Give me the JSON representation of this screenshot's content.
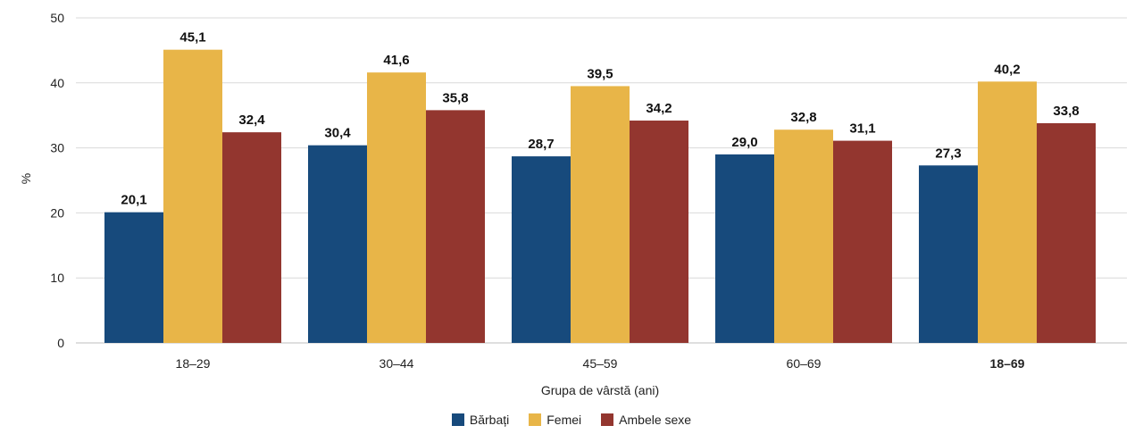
{
  "chart_data": {
    "type": "bar",
    "xlabel": "Grupa de vârstă (ani)",
    "ylabel": "%",
    "ylim": [
      0,
      50
    ],
    "yticks": [
      0,
      10,
      20,
      30,
      40,
      50
    ],
    "categories": [
      "18–29",
      "30–44",
      "45–59",
      "60–69",
      "18–69"
    ],
    "bold_categories": [
      "18–69"
    ],
    "series": [
      {
        "name": "Bărbați",
        "color": "#174a7c",
        "values": [
          20.1,
          30.4,
          28.7,
          29.0,
          27.3
        ],
        "labels": [
          "20,1",
          "30,4",
          "28,7",
          "29,0",
          "27,3"
        ]
      },
      {
        "name": "Femei",
        "color": "#e8b548",
        "values": [
          45.1,
          41.6,
          39.5,
          32.8,
          40.2
        ],
        "labels": [
          "45,1",
          "41,6",
          "39,5",
          "32,8",
          "40,2"
        ]
      },
      {
        "name": "Ambele sexe",
        "color": "#93362f",
        "values": [
          32.4,
          35.8,
          34.2,
          31.1,
          33.8
        ],
        "labels": [
          "32,4",
          "35,8",
          "34,2",
          "31,1",
          "33,8"
        ]
      }
    ],
    "grid": true,
    "legend": "bottom-center"
  }
}
